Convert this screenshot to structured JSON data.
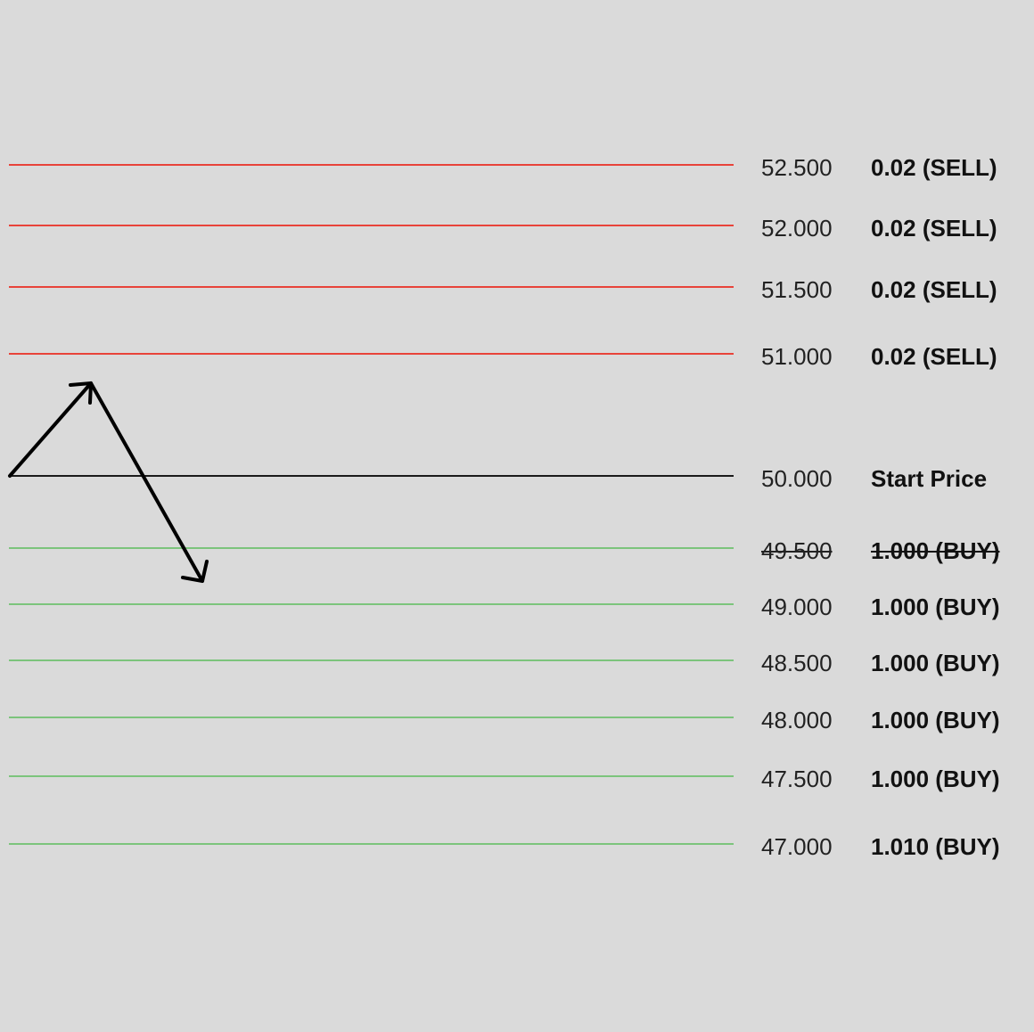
{
  "colors": {
    "sell": "#e8433a",
    "start": "#1a1a1a",
    "buy": "#7cc47c",
    "background": "#dadada",
    "arrow": "#000000"
  },
  "levels": [
    {
      "price": "52.500",
      "label": "0.02 (SELL)",
      "type": "sell",
      "struck": false
    },
    {
      "price": "52.000",
      "label": "0.02 (SELL)",
      "type": "sell",
      "struck": false
    },
    {
      "price": "51.500",
      "label": "0.02 (SELL)",
      "type": "sell",
      "struck": false
    },
    {
      "price": "51.000",
      "label": "0.02 (SELL)",
      "type": "sell",
      "struck": false
    },
    {
      "price": "50.000",
      "label": "Start Price",
      "type": "start",
      "struck": false
    },
    {
      "price": "49.500",
      "label": "1.000 (BUY)",
      "type": "buy",
      "struck": true
    },
    {
      "price": "49.000",
      "label": "1.000 (BUY)",
      "type": "buy",
      "struck": false
    },
    {
      "price": "48.500",
      "label": "1.000 (BUY)",
      "type": "buy",
      "struck": false
    },
    {
      "price": "48.000",
      "label": "1.000 (BUY)",
      "type": "buy",
      "struck": false
    },
    {
      "price": "47.500",
      "label": "1.000 (BUY)",
      "type": "buy",
      "struck": false
    },
    {
      "price": "47.000",
      "label": "1.010 (BUY)",
      "type": "buy",
      "struck": false
    }
  ],
  "price_path": {
    "description_icon": "up-then-down-arrow"
  }
}
